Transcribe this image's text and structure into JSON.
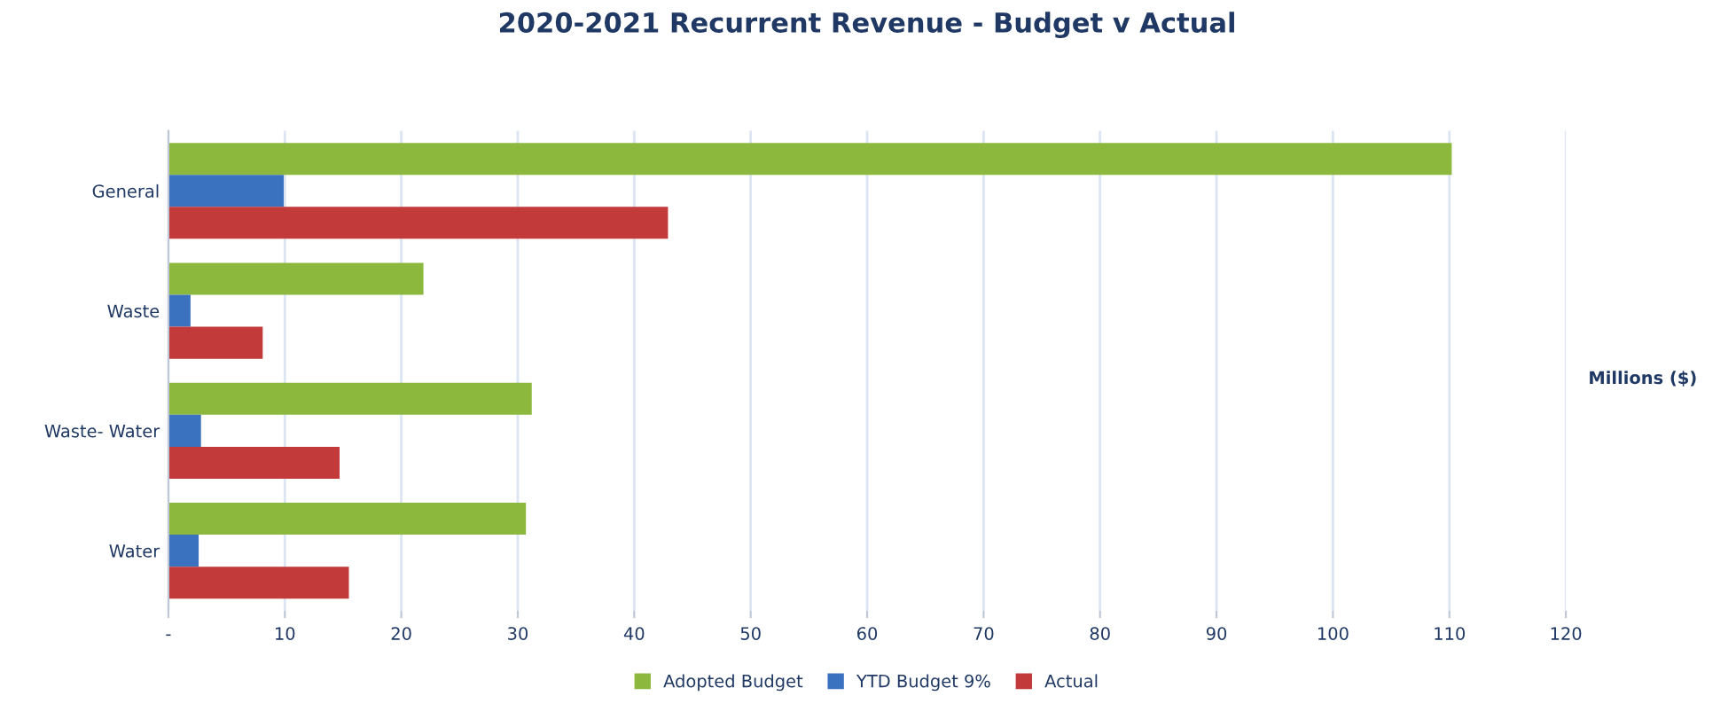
{
  "chart_data": {
    "type": "bar",
    "orientation": "horizontal",
    "title": "2020-2021 Recurrent Revenue - Budget v Actual",
    "xlabel": "Millions ($)",
    "categories": [
      "General",
      "Waste",
      "Waste- Water",
      "Water"
    ],
    "series": [
      {
        "name": "Adopted Budget",
        "color": "#8db83e",
        "values": [
          110.2,
          21.9,
          31.2,
          30.7
        ]
      },
      {
        "name": "YTD Budget 9%",
        "color": "#3a72bf",
        "values": [
          9.9,
          1.9,
          2.8,
          2.6
        ]
      },
      {
        "name": "Actual",
        "color": "#c23a3a",
        "values": [
          42.9,
          8.1,
          14.7,
          15.5
        ]
      }
    ],
    "xlim": [
      0,
      120
    ],
    "xticks": [
      {
        "value": 0,
        "label": "-"
      },
      10,
      20,
      30,
      40,
      50,
      60,
      70,
      80,
      90,
      100,
      110,
      120
    ],
    "grid": "x",
    "legend": "bottom"
  }
}
